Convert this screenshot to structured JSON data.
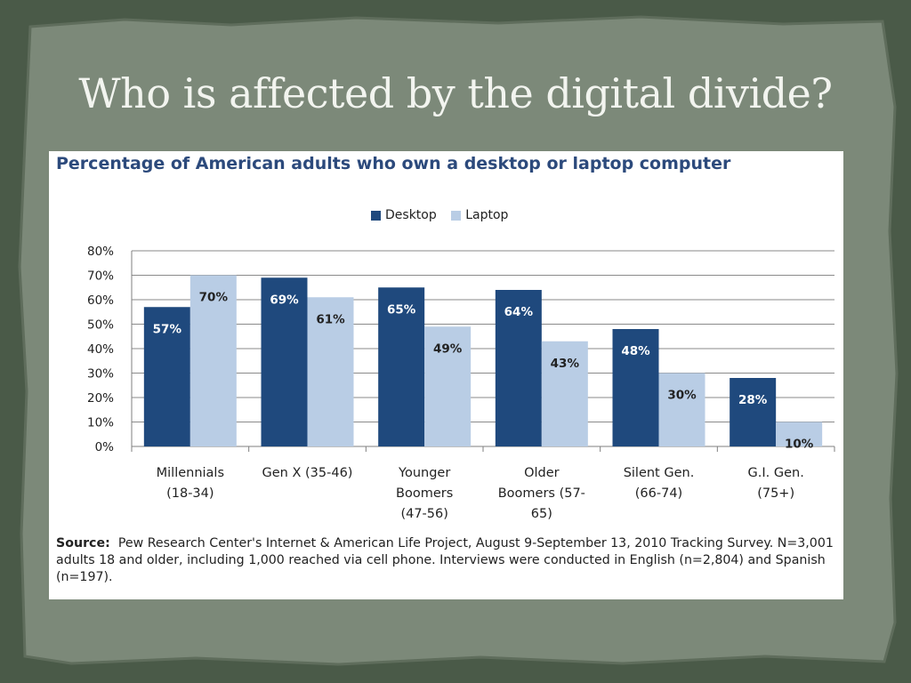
{
  "slide": {
    "title": "Who is affected by the digital divide?",
    "background_color": "#4a5a48",
    "panel_color": "#7c8979"
  },
  "chart_data": {
    "type": "bar",
    "title": "Percentage of American adults who own a desktop or laptop computer",
    "xlabel": "",
    "ylabel": "",
    "ylim": [
      0,
      80
    ],
    "yticks": [
      "0%",
      "10%",
      "20%",
      "30%",
      "40%",
      "50%",
      "60%",
      "70%",
      "80%"
    ],
    "grid": true,
    "legend_position": "top-center",
    "categories": [
      [
        "Millennials",
        "(18-34)"
      ],
      [
        "Gen X (35-46)"
      ],
      [
        "Younger",
        "Boomers",
        "(47-56)"
      ],
      [
        "Older",
        "Boomers (57-",
        "65)"
      ],
      [
        "Silent Gen.",
        "(66-74)"
      ],
      [
        "G.I. Gen.",
        "(75+)"
      ]
    ],
    "series": [
      {
        "name": "Desktop",
        "color": "#1f497d",
        "values": [
          57,
          69,
          65,
          64,
          48,
          28
        ],
        "labels": [
          "57%",
          "69%",
          "65%",
          "64%",
          "48%",
          "28%"
        ]
      },
      {
        "name": "Laptop",
        "color": "#b9cde5",
        "values": [
          70,
          61,
          49,
          43,
          30,
          10
        ],
        "labels": [
          "70%",
          "61%",
          "49%",
          "43%",
          "30%",
          "10%"
        ]
      }
    ]
  },
  "source": {
    "label": "Source:",
    "text": "Pew Research Center's Internet & American Life Project, August 9-September 13, 2010 Tracking Survey. N=3,001 adults 18 and older, including 1,000 reached via cell phone. Interviews were conducted in English (n=2,804) and Spanish (n=197)."
  }
}
